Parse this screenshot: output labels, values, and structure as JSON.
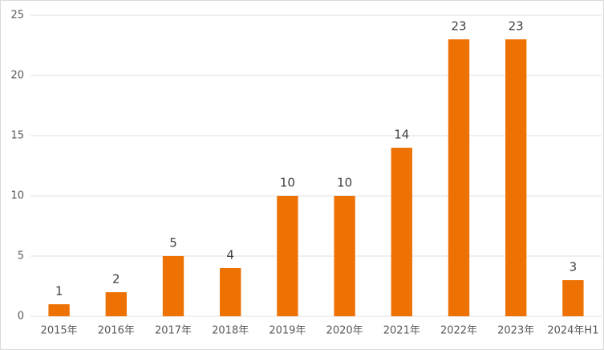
{
  "chart_data": {
    "type": "bar",
    "categories": [
      "2015年",
      "2016年",
      "2017年",
      "2018年",
      "2019年",
      "2020年",
      "2021年",
      "2022年",
      "2023年",
      "2024年H1"
    ],
    "values": [
      1,
      2,
      5,
      4,
      10,
      10,
      14,
      23,
      23,
      3
    ],
    "color": "#ee7203",
    "ylim": [
      0,
      25
    ],
    "yticks": [
      0,
      5,
      10,
      15,
      20,
      25
    ],
    "grid": true,
    "data_labels": true
  }
}
